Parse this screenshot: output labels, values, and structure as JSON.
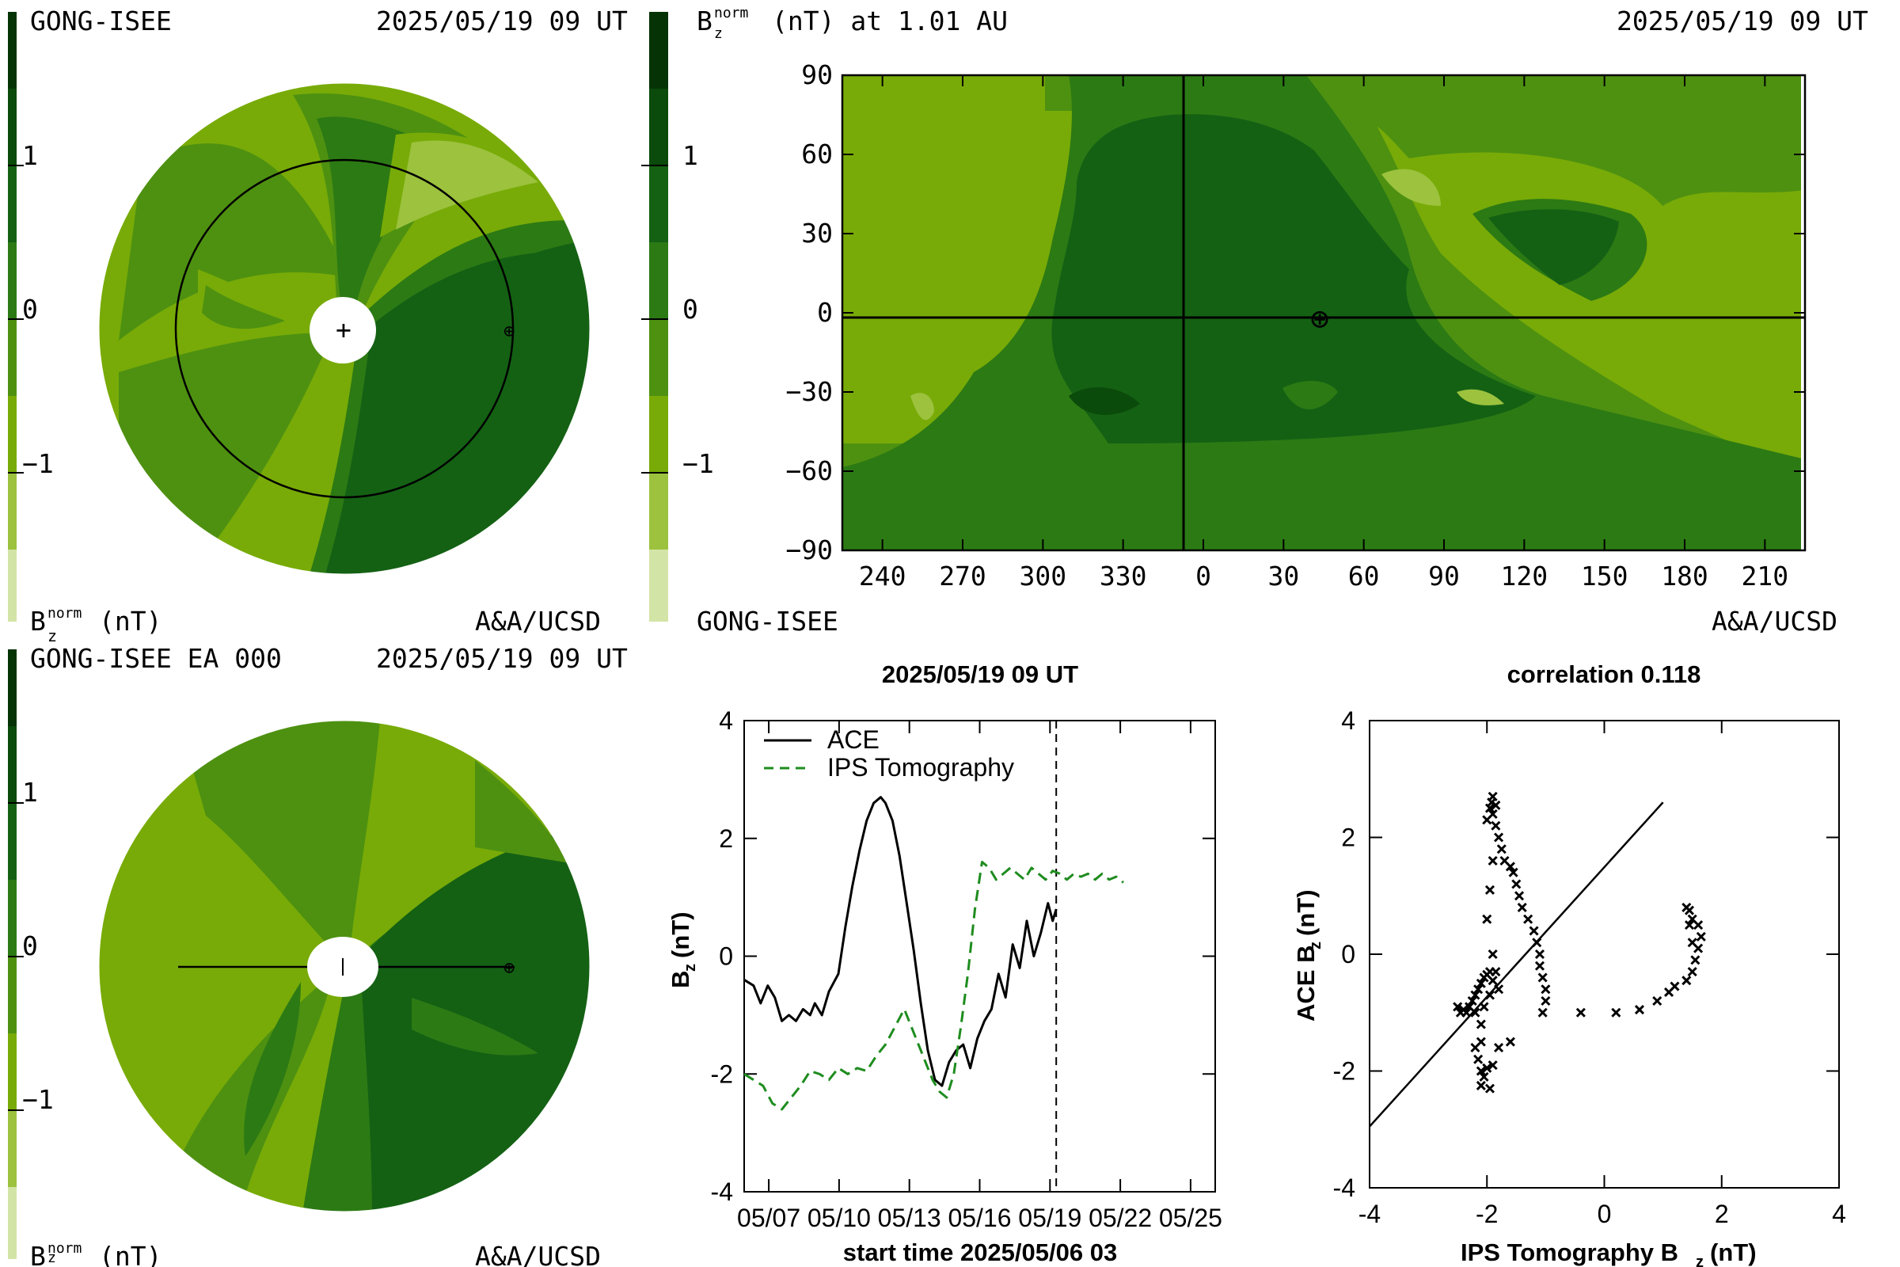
{
  "colors": {
    "levels": [
      "#d3e4a7",
      "#9cc23e",
      "#78ab07",
      "#4e9111",
      "#2c7a14",
      "#146114",
      "#0a4a0a",
      "#053305"
    ],
    "ips_dash": "#1e8c1e",
    "ace_line": "#000000"
  },
  "panel_top_left": {
    "source": "GONG-ISEE",
    "time": "2025/05/19 09 UT",
    "credit": "A&A/UCSD",
    "colorbar_label": "B",
    "colorbar_sub": "z",
    "colorbar_sup": "norm",
    "colorbar_unit": "(nT)",
    "ticks": [
      "1",
      "0",
      "−1"
    ],
    "sun_marker": "+",
    "earth_marker": "⊕"
  },
  "panel_bottom_left": {
    "source": "GONG-ISEE EA 000",
    "time": "2025/05/19 09 UT",
    "credit": "A&A/UCSD",
    "colorbar_label": "B",
    "colorbar_sub": "z",
    "colorbar_sup": "norm",
    "colorbar_unit": "(nT)",
    "ticks": [
      "1",
      "0",
      "−1"
    ],
    "earth_marker": "⊕"
  },
  "panel_top_right": {
    "title_main": "B",
    "title_sub": "z",
    "title_sup": "norm",
    "title_rest": "(nT) at 1.01 AU",
    "time": "2025/05/19 09 UT",
    "source": "GONG-ISEE",
    "credit": "A&A/UCSD",
    "colorbar_ticks": [
      "1",
      "0",
      "−1"
    ],
    "earth_marker": "⊕"
  },
  "chart_data": [
    {
      "type": "heatmap",
      "title": "(nT) at 1.01 AU",
      "x_ticks": [
        "240",
        "270",
        "300",
        "330",
        "0",
        "30",
        "60",
        "90",
        "120",
        "150",
        "180",
        "210"
      ],
      "y_ticks": [
        "90",
        "60",
        "30",
        "0",
        "−30",
        "−60",
        "−90"
      ],
      "xlim": [
        225,
        585
      ],
      "ylim": [
        -90,
        90
      ],
      "colorbar": {
        "ticks": [
          1,
          0,
          -1
        ],
        "range": [
          -1.5,
          1.5
        ],
        "levels": 8
      },
      "earth_position": {
        "lon": 52,
        "lat": -2
      }
    },
    {
      "type": "line",
      "title": "2025/05/19 09 UT",
      "xlabel": "start time 2025/05/06 03",
      "ylabel": "B",
      "ylabel_sub": "z",
      "ylabel_unit": "(nT)",
      "x_ticks": [
        "05/07",
        "05/10",
        "05/13",
        "05/16",
        "05/19",
        "05/22",
        "05/25"
      ],
      "y_ticks": [
        "4",
        "2",
        "0",
        "-2",
        "-4"
      ],
      "xlim": [
        0,
        20
      ],
      "ylim": [
        -4,
        4
      ],
      "vline_x": 13.25,
      "series": [
        {
          "name": "ACE",
          "style": "solid",
          "x": [
            0,
            0.4,
            0.7,
            1,
            1.3,
            1.6,
            1.9,
            2.2,
            2.5,
            2.8,
            3,
            3.3,
            3.6,
            4,
            4.3,
            4.6,
            4.9,
            5.2,
            5.5,
            5.8,
            6,
            6.3,
            6.6,
            6.9,
            7.2,
            7.5,
            7.8,
            8.1,
            8.4,
            8.7,
            9,
            9.3,
            9.6,
            9.9,
            10.2,
            10.5,
            10.8,
            11.1,
            11.4,
            11.7,
            12,
            12.3,
            12.6,
            12.9,
            13.1,
            13.25
          ],
          "y": [
            -0.4,
            -0.5,
            -0.8,
            -0.5,
            -0.7,
            -1.1,
            -1.0,
            -1.1,
            -0.9,
            -1.0,
            -0.8,
            -1.0,
            -0.6,
            -0.3,
            0.5,
            1.2,
            1.8,
            2.3,
            2.6,
            2.7,
            2.6,
            2.3,
            1.7,
            0.9,
            0.1,
            -0.8,
            -1.6,
            -2.1,
            -2.2,
            -1.8,
            -1.6,
            -1.5,
            -1.9,
            -1.4,
            -1.1,
            -0.9,
            -0.3,
            -0.7,
            0.2,
            -0.2,
            0.6,
            0.0,
            0.4,
            0.9,
            0.6,
            0.8
          ]
        },
        {
          "name": "IPS Tomography",
          "style": "dashed",
          "x": [
            0,
            0.4,
            0.8,
            1.2,
            1.6,
            2,
            2.4,
            2.8,
            3.2,
            3.6,
            4,
            4.4,
            4.8,
            5.2,
            5.6,
            6,
            6.4,
            6.8,
            7.2,
            7.6,
            8,
            8.3,
            8.6,
            8.9,
            9.2,
            9.5,
            9.8,
            10.1,
            10.4,
            10.7,
            11,
            11.3,
            11.6,
            11.9,
            12.2,
            12.5,
            12.8,
            13.1,
            13.4,
            13.7,
            14,
            14.3,
            14.6,
            14.9,
            15.2,
            15.5,
            15.8,
            16.1
          ],
          "y": [
            -2.0,
            -2.1,
            -2.2,
            -2.5,
            -2.6,
            -2.4,
            -2.2,
            -1.95,
            -2.0,
            -2.1,
            -1.9,
            -2.0,
            -1.9,
            -1.95,
            -1.7,
            -1.5,
            -1.2,
            -0.9,
            -1.3,
            -1.7,
            -2.1,
            -2.3,
            -2.4,
            -2.0,
            -1.2,
            -0.3,
            0.8,
            1.6,
            1.5,
            1.3,
            1.4,
            1.5,
            1.4,
            1.3,
            1.5,
            1.4,
            1.3,
            1.45,
            1.4,
            1.3,
            1.4,
            1.35,
            1.4,
            1.3,
            1.4,
            1.3,
            1.35,
            1.25
          ]
        }
      ]
    },
    {
      "type": "scatter",
      "title": "correlation 0.118",
      "xlabel": "IPS Tomography B",
      "xlabel_sub": "z",
      "xlabel_unit": "(nT)",
      "ylabel": "ACE B",
      "ylabel_sub": "z",
      "ylabel_unit": "(nT)",
      "x_ticks": [
        "-4",
        "-2",
        "0",
        "2",
        "4"
      ],
      "y_ticks": [
        "4",
        "2",
        "0",
        "-2",
        "-4"
      ],
      "xlim": [
        -4,
        4
      ],
      "ylim": [
        -4,
        4
      ],
      "fit_line": [
        [
          -4,
          -2.95
        ],
        [
          1.0,
          2.6
        ]
      ],
      "points": [
        [
          -2.5,
          -0.9
        ],
        [
          -2.45,
          -1.0
        ],
        [
          -2.4,
          -0.95
        ],
        [
          -2.35,
          -1.0
        ],
        [
          -2.3,
          -0.9
        ],
        [
          -2.25,
          -0.8
        ],
        [
          -2.2,
          -0.7
        ],
        [
          -2.15,
          -0.6
        ],
        [
          -2.1,
          -0.5
        ],
        [
          -2.05,
          -0.4
        ],
        [
          -2.0,
          -0.35
        ],
        [
          -1.95,
          -0.3
        ],
        [
          -1.9,
          -0.45
        ],
        [
          -1.95,
          -0.7
        ],
        [
          -2.05,
          -0.9
        ],
        [
          -2.2,
          -1.0
        ],
        [
          -2.1,
          -1.2
        ],
        [
          -1.9,
          2.7
        ],
        [
          -1.92,
          2.6
        ],
        [
          -1.95,
          2.5
        ],
        [
          -1.85,
          2.55
        ],
        [
          -1.9,
          2.4
        ],
        [
          -2.0,
          2.3
        ],
        [
          -1.85,
          2.2
        ],
        [
          -1.8,
          2.0
        ],
        [
          -1.75,
          1.8
        ],
        [
          -1.7,
          1.6
        ],
        [
          -1.6,
          1.5
        ],
        [
          -1.55,
          1.4
        ],
        [
          -1.5,
          1.2
        ],
        [
          -1.45,
          1.0
        ],
        [
          -1.4,
          0.8
        ],
        [
          -1.3,
          0.6
        ],
        [
          -1.2,
          0.4
        ],
        [
          -1.15,
          0.2
        ],
        [
          -1.1,
          0.0
        ],
        [
          -1.1,
          -0.2
        ],
        [
          -1.05,
          -0.4
        ],
        [
          -1.0,
          -0.6
        ],
        [
          -1.0,
          -0.8
        ],
        [
          -1.05,
          -1.0
        ],
        [
          -1.8,
          -0.6
        ],
        [
          -1.85,
          -0.3
        ],
        [
          -1.9,
          0.0
        ],
        [
          -2.0,
          0.6
        ],
        [
          -1.95,
          1.1
        ],
        [
          -1.9,
          1.6
        ],
        [
          -2.1,
          -1.5
        ],
        [
          -2.2,
          -1.6
        ],
        [
          -2.15,
          -1.8
        ],
        [
          -2.1,
          -2.0
        ],
        [
          -2.05,
          -2.1
        ],
        [
          -2.0,
          -1.95
        ],
        [
          -2.1,
          -2.25
        ],
        [
          -1.95,
          -2.3
        ],
        [
          -1.9,
          -1.9
        ],
        [
          -1.8,
          -1.6
        ],
        [
          -1.6,
          -1.5
        ],
        [
          -0.4,
          -1.0
        ],
        [
          0.2,
          -1.0
        ],
        [
          0.6,
          -0.95
        ],
        [
          0.9,
          -0.8
        ],
        [
          1.1,
          -0.65
        ],
        [
          1.2,
          -0.55
        ],
        [
          1.4,
          -0.45
        ],
        [
          1.5,
          -0.3
        ],
        [
          1.55,
          -0.1
        ],
        [
          1.6,
          0.1
        ],
        [
          1.65,
          0.3
        ],
        [
          1.6,
          0.5
        ],
        [
          1.5,
          0.6
        ],
        [
          1.45,
          0.75
        ],
        [
          1.4,
          0.8
        ],
        [
          1.45,
          0.5
        ],
        [
          1.5,
          0.2
        ]
      ]
    }
  ]
}
